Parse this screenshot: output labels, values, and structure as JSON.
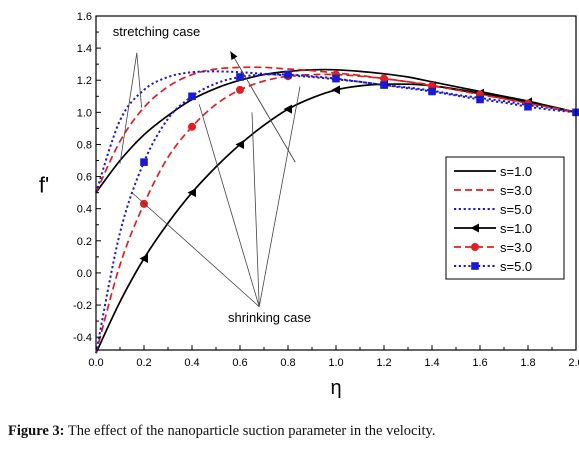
{
  "caption": {
    "label": "Figure 3:",
    "text": "The effect of the nanoparticle suction parameter in the velocity."
  },
  "chart_data": {
    "type": "line",
    "xlabel": "η",
    "ylabel": "f'",
    "xlim": [
      0.0,
      2.0
    ],
    "ylim": [
      -0.48,
      1.6
    ],
    "x_ticks": [
      0.0,
      0.2,
      0.4,
      0.6,
      0.8,
      1.0,
      1.2,
      1.4,
      1.6,
      1.8,
      2.0
    ],
    "x_tick_labels": [
      "0.0",
      "0.2",
      "0.4",
      "0.6",
      "0.8",
      "1.0",
      "1.2",
      "1.4",
      "1.6",
      "1.8",
      "2.0"
    ],
    "y_ticks": [
      -0.4,
      -0.2,
      0.0,
      0.2,
      0.4,
      0.6,
      0.8,
      1.0,
      1.2,
      1.4,
      1.6
    ],
    "y_tick_labels": [
      "-0.4",
      "-0.2",
      "0.0",
      "0.2",
      "0.4",
      "0.6",
      "0.8",
      "1.0",
      "1.2",
      "1.4",
      "1.6"
    ],
    "grid": false,
    "legend_position": "right",
    "series": [
      {
        "name": "s=1.0",
        "color": "#000000",
        "dash": "solid",
        "marker": "none",
        "x": [
          0.0,
          0.1,
          0.2,
          0.3,
          0.4,
          0.5,
          0.6,
          0.7,
          0.8,
          0.9,
          1.0,
          1.1,
          1.2,
          1.3,
          1.4,
          1.5,
          1.6,
          1.7,
          1.8,
          1.9,
          2.0
        ],
        "y": [
          0.5,
          0.7,
          0.86,
          0.98,
          1.08,
          1.15,
          1.2,
          1.235,
          1.255,
          1.265,
          1.265,
          1.255,
          1.24,
          1.22,
          1.19,
          1.16,
          1.13,
          1.1,
          1.07,
          1.035,
          1.0
        ]
      },
      {
        "name": "s=3.0",
        "color": "#e02020",
        "dash": "dashed",
        "marker": "none",
        "x": [
          0.0,
          0.1,
          0.2,
          0.3,
          0.4,
          0.5,
          0.6,
          0.7,
          0.8,
          0.9,
          1.0,
          1.1,
          1.2,
          1.3,
          1.4,
          1.5,
          1.6,
          1.7,
          1.8,
          1.9,
          2.0
        ],
        "y": [
          0.5,
          0.82,
          1.03,
          1.16,
          1.235,
          1.27,
          1.28,
          1.28,
          1.27,
          1.26,
          1.245,
          1.23,
          1.21,
          1.19,
          1.17,
          1.14,
          1.115,
          1.085,
          1.06,
          1.03,
          1.0
        ]
      },
      {
        "name": "s=5.0",
        "color": "#1a1ad0",
        "dash": "dotted",
        "marker": "none",
        "x": [
          0.0,
          0.1,
          0.2,
          0.3,
          0.4,
          0.5,
          0.6,
          0.7,
          0.8,
          0.9,
          1.0,
          1.1,
          1.2,
          1.3,
          1.4,
          1.5,
          1.6,
          1.7,
          1.8,
          1.9,
          2.0
        ],
        "y": [
          0.5,
          0.95,
          1.14,
          1.22,
          1.25,
          1.255,
          1.25,
          1.24,
          1.23,
          1.22,
          1.205,
          1.19,
          1.17,
          1.155,
          1.135,
          1.11,
          1.09,
          1.07,
          1.045,
          1.025,
          1.0
        ]
      },
      {
        "name": "s=1.0",
        "color": "#000000",
        "dash": "solid",
        "marker": "triangle-left",
        "x": [
          0.0,
          0.1,
          0.2,
          0.3,
          0.4,
          0.5,
          0.6,
          0.7,
          0.8,
          0.9,
          1.0,
          1.1,
          1.2,
          1.3,
          1.4,
          1.5,
          1.6,
          1.7,
          1.8,
          1.9,
          2.0
        ],
        "y": [
          -0.5,
          -0.18,
          0.09,
          0.31,
          0.5,
          0.66,
          0.8,
          0.92,
          1.02,
          1.09,
          1.14,
          1.165,
          1.175,
          1.175,
          1.165,
          1.145,
          1.12,
          1.095,
          1.065,
          1.035,
          1.0
        ],
        "marker_x": [
          0.2,
          0.4,
          0.6,
          0.8,
          1.0,
          1.2,
          1.4,
          1.6,
          1.8
        ]
      },
      {
        "name": "s=3.0",
        "color": "#e02020",
        "dash": "dashed",
        "marker": "circle",
        "x": [
          0.0,
          0.1,
          0.2,
          0.3,
          0.4,
          0.5,
          0.6,
          0.7,
          0.8,
          0.9,
          1.0,
          1.1,
          1.2,
          1.3,
          1.4,
          1.5,
          1.6,
          1.7,
          1.8,
          1.9,
          2.0
        ],
        "y": [
          -0.5,
          0.05,
          0.43,
          0.72,
          0.91,
          1.05,
          1.14,
          1.195,
          1.225,
          1.235,
          1.235,
          1.225,
          1.21,
          1.19,
          1.165,
          1.14,
          1.11,
          1.085,
          1.055,
          1.03,
          1.0
        ],
        "marker_x": [
          0.2,
          0.4,
          0.6,
          0.8,
          1.0,
          1.2,
          1.4,
          1.6,
          1.8
        ]
      },
      {
        "name": "s=5.0",
        "color": "#1a1ad0",
        "dash": "dotted",
        "marker": "square",
        "x": [
          0.0,
          0.1,
          0.2,
          0.3,
          0.4,
          0.5,
          0.6,
          0.7,
          0.8,
          0.9,
          1.0,
          1.1,
          1.2,
          1.3,
          1.4,
          1.5,
          1.6,
          1.7,
          1.8,
          1.9,
          2.0
        ],
        "y": [
          -0.5,
          0.25,
          0.69,
          0.96,
          1.1,
          1.18,
          1.22,
          1.235,
          1.235,
          1.225,
          1.21,
          1.19,
          1.17,
          1.15,
          1.13,
          1.105,
          1.08,
          1.06,
          1.035,
          1.015,
          1.0
        ],
        "marker_x": [
          0.2,
          0.4,
          0.6,
          0.8,
          1.0,
          1.2,
          1.4,
          1.6,
          1.8,
          2.0
        ]
      }
    ],
    "annotations": [
      {
        "text": "stretching case",
        "text_at": [
          0.07,
          1.5
        ],
        "pointers": [
          [
            0.1,
            0.68
          ],
          [
            0.19,
            1.03
          ]
        ],
        "fan_from": [
          0.17,
          1.37
        ]
      },
      {
        "text": "shrinking case",
        "text_at": [
          0.55,
          -0.28
        ],
        "pointers": [
          [
            0.15,
            0.5
          ],
          [
            0.43,
            1.05
          ],
          [
            0.65,
            1.0
          ],
          [
            0.85,
            1.16
          ]
        ],
        "fan_from": [
          0.68,
          -0.21
        ]
      }
    ],
    "arrow": {
      "from": [
        0.83,
        0.69
      ],
      "to": [
        0.56,
        1.38
      ]
    }
  }
}
